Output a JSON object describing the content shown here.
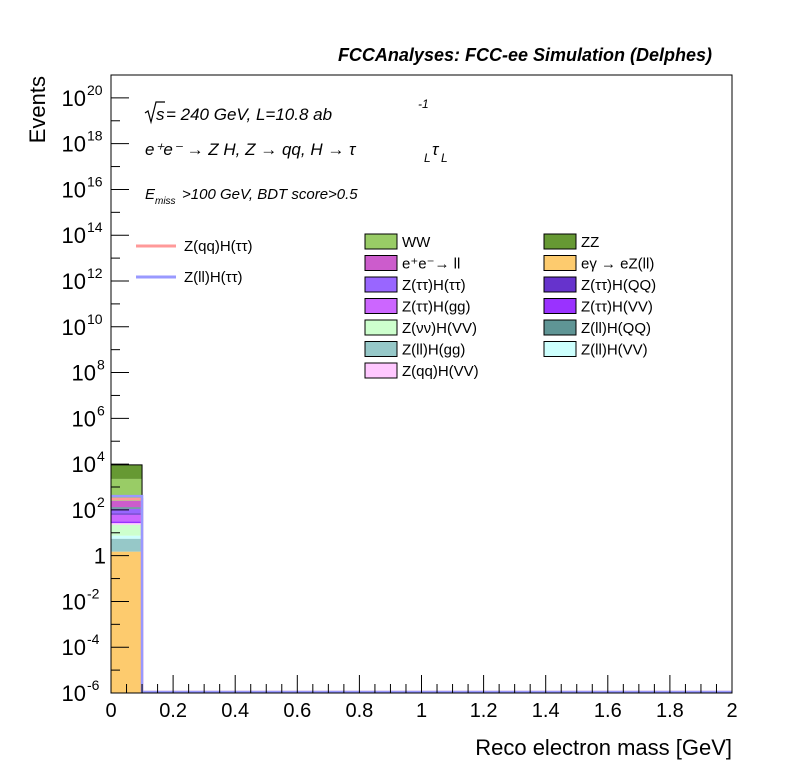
{
  "chart_data": {
    "type": "bar",
    "title": "FCCAnalyses: FCC-ee Simulation (Delphes)",
    "xlabel": "Reco electron mass [GeV]",
    "ylabel": "Events",
    "xlim": [
      0,
      2
    ],
    "ylim": [
      1e-06,
      1e+21
    ],
    "yscale": "log",
    "xticks": [
      "0",
      "0.2",
      "0.4",
      "0.6",
      "0.8",
      "1",
      "1.2",
      "1.4",
      "1.6",
      "1.8",
      "2"
    ],
    "yticks": [
      {
        "base": "10",
        "exp": "-6",
        "value": 1e-06
      },
      {
        "base": "10",
        "exp": "-4",
        "value": 0.0001
      },
      {
        "base": "10",
        "exp": "-2",
        "value": 0.01
      },
      {
        "base": "1",
        "exp": "",
        "value": 1
      },
      {
        "base": "10",
        "exp": "2",
        "value": 100.0
      },
      {
        "base": "10",
        "exp": "4",
        "value": 10000.0
      },
      {
        "base": "10",
        "exp": "6",
        "value": 1000000.0
      },
      {
        "base": "10",
        "exp": "8",
        "value": 100000000.0
      },
      {
        "base": "10",
        "exp": "10",
        "value": 10000000000.0
      },
      {
        "base": "10",
        "exp": "12",
        "value": 1000000000000.0
      },
      {
        "base": "10",
        "exp": "14",
        "value": 100000000000000.0
      },
      {
        "base": "10",
        "exp": "16",
        "value": 1e+16
      },
      {
        "base": "10",
        "exp": "18",
        "value": 1e+18
      },
      {
        "base": "10",
        "exp": "20",
        "value": 1e+20
      }
    ],
    "annotations": {
      "sqrt_s": "s",
      "energy": " = 240 GeV, L=10.8 ab",
      "lumi_exp": "-1",
      "process": "e⁺e⁻ → Z H, Z → qq, H → τ",
      "tau_sub": "L",
      "cut_prefix": "E",
      "cut_sub": "miss",
      "cut_text": ">100 GeV, BDT score>0.5"
    },
    "bin": [
      0,
      0.1
    ],
    "stack": [
      {
        "name": "eγ → eZ(ll)",
        "color": "#fdcb6e",
        "value": 1.5
      },
      {
        "name": "Z(ll)H(gg)",
        "color": "#96c8c8",
        "value": 4
      },
      {
        "name": "Z(ll)H(VV)",
        "color": "#cdfffd",
        "value": 2
      },
      {
        "name": "Z(νν)H(VV)",
        "color": "#cdffcd",
        "value": 15
      },
      {
        "name": "Z(qq)H(VV)",
        "color": "#ffc8ff",
        "value": 4
      },
      {
        "name": "Z(ττ)H(VV)",
        "color": "#9a32ff",
        "value": 5
      },
      {
        "name": "Z(ττ)H(gg)",
        "color": "#cc66ff",
        "value": 30
      },
      {
        "name": "Z(ττ)H(QQ)",
        "color": "#6633cc",
        "value": 10
      },
      {
        "name": "Z(ττ)H(ττ)",
        "color": "#9966ff",
        "value": 40
      },
      {
        "name": "Z(ll)H(QQ)",
        "color": "#5f9595",
        "value": 20
      },
      {
        "name": "e⁺e⁻→ ll",
        "color": "#cc5ccc",
        "value": 120
      },
      {
        "name": "WW",
        "color": "#99cc66",
        "value": 2000
      },
      {
        "name": "ZZ",
        "color": "#669933",
        "value": 7000
      }
    ],
    "signals": [
      {
        "name": "Z(qq)H(ττ)",
        "color": "#ff9999",
        "value": 300
      },
      {
        "name": "Z(ll)H(ττ)",
        "color": "#9999ff",
        "value": 400
      }
    ],
    "legend_bkg": [
      {
        "name": "WW",
        "color": "#99cc66"
      },
      {
        "name": "ZZ",
        "color": "#669933"
      },
      {
        "name": "e⁺e⁻→ ll",
        "color": "#cc5ccc"
      },
      {
        "name": "eγ → eZ(ll)",
        "color": "#fdcb6e"
      },
      {
        "name": "Z(ττ)H(ττ)",
        "color": "#9966ff"
      },
      {
        "name": "Z(ττ)H(QQ)",
        "color": "#6633cc"
      },
      {
        "name": "Z(ττ)H(gg)",
        "color": "#cc66ff"
      },
      {
        "name": "Z(ττ)H(VV)",
        "color": "#9a32ff"
      },
      {
        "name": "Z(νν)H(VV)",
        "color": "#cdffcd"
      },
      {
        "name": "Z(ll)H(QQ)",
        "color": "#5f9595"
      },
      {
        "name": "Z(ll)H(gg)",
        "color": "#96c8c8"
      },
      {
        "name": "Z(ll)H(VV)",
        "color": "#cdfffd"
      },
      {
        "name": "Z(qq)H(VV)",
        "color": "#ffc8ff"
      }
    ],
    "legend_sig": [
      {
        "name": "Z(qq)H(ττ)",
        "color": "#ff9999"
      },
      {
        "name": "Z(ll)H(ττ)",
        "color": "#9999ff"
      }
    ],
    "legend_placement": "top"
  }
}
